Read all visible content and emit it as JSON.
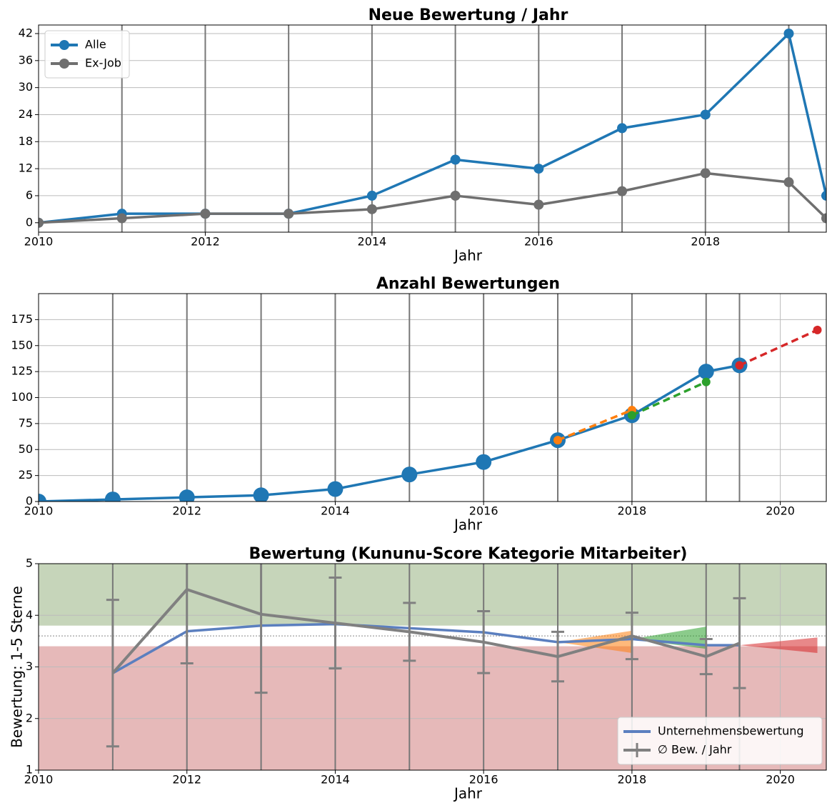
{
  "chart_data": [
    {
      "type": "line",
      "title": "Neue Bewertung / Jahr",
      "xlabel": "Jahr",
      "x": [
        2010,
        2011,
        2012,
        2013,
        2014,
        2015,
        2016,
        2017,
        2018,
        2019,
        2019.45
      ],
      "series": [
        {
          "name": "Alle",
          "color": "#1f77b4",
          "values": [
            0,
            2,
            2,
            2,
            6,
            14,
            12,
            21,
            24,
            42,
            6
          ],
          "marker_size": 7
        },
        {
          "name": "Ex-Job",
          "color": "#6f6f6f",
          "values": [
            0,
            1,
            2,
            2,
            3,
            6,
            4,
            7,
            11,
            9,
            1
          ],
          "marker_size": 7
        }
      ],
      "xlim": [
        2010,
        2019.45
      ],
      "xticks": [
        2010,
        2012,
        2014,
        2016,
        2018
      ],
      "ylim": [
        -2.1,
        43.9
      ],
      "yticks": [
        0,
        6,
        12,
        18,
        24,
        30,
        36,
        42
      ],
      "vlines": [
        2011,
        2012,
        2013,
        2014,
        2015,
        2016,
        2017,
        2018,
        2019
      ],
      "grid": true,
      "legend": "upper left"
    },
    {
      "type": "line",
      "title": "Anzahl Bewertungen",
      "xlabel": "Jahr",
      "x": [
        2010,
        2011,
        2012,
        2013,
        2014,
        2015,
        2016,
        2017,
        2018,
        2019,
        2019.45
      ],
      "series": [
        {
          "color": "#1f77b4",
          "values": [
            0,
            2,
            4,
            6,
            12,
            26,
            38,
            59,
            83,
            125,
            131
          ],
          "marker_size": 11
        },
        {
          "color": "#ff7f0e",
          "x": [
            2017,
            2018
          ],
          "values": [
            59,
            88
          ],
          "marker_size": 6,
          "dashed": true
        },
        {
          "color": "#2ca02c",
          "x": [
            2018,
            2019
          ],
          "values": [
            83,
            115
          ],
          "marker_size": 6,
          "dashed": true
        },
        {
          "color": "#d62728",
          "x": [
            2019.45,
            2020.5
          ],
          "values": [
            131,
            165
          ],
          "marker_size": 6,
          "dashed": true
        }
      ],
      "xlim": [
        2010,
        2020.62
      ],
      "xticks": [
        2010,
        2012,
        2014,
        2016,
        2018,
        2020
      ],
      "ylim": [
        0,
        200
      ],
      "yticks": [
        0,
        25,
        50,
        75,
        100,
        125,
        150,
        175
      ],
      "vlines": [
        2011,
        2012,
        2013,
        2014,
        2015,
        2016,
        2017,
        2018,
        2019,
        2019.45
      ],
      "grid": true
    },
    {
      "type": "line",
      "title": "Bewertung (Kununu-Score Kategorie Mitarbeiter)",
      "xlabel": "Jahr",
      "ylabel": "Bewertung: 1-5 Sterne",
      "x": [
        2011,
        2012,
        2013,
        2014,
        2015,
        2016,
        2017,
        2018,
        2019,
        2019.45
      ],
      "series": [
        {
          "name": "Unternehmensbewertung",
          "color": "#5b7fbf",
          "values": [
            2.88,
            3.69,
            3.8,
            3.83,
            3.75,
            3.67,
            3.48,
            3.54,
            3.42,
            3.42
          ],
          "marker_size": 0
        },
        {
          "name": "∅ Bew. / Jahr",
          "color": "#808080",
          "values": [
            2.88,
            4.5,
            4.02,
            3.85,
            3.68,
            3.48,
            3.2,
            3.6,
            3.2,
            3.46
          ],
          "errors": [
            1.42,
            1.43,
            1.52,
            0.88,
            0.56,
            0.6,
            0.48,
            0.45,
            0.34,
            0.87
          ],
          "marker_size": 0
        }
      ],
      "cones": [
        {
          "color": "#ff7f0e",
          "x": [
            2017,
            2018
          ],
          "y_start": 3.48,
          "y_low": 3.27,
          "y_high": 3.7
        },
        {
          "color": "#2ca02c",
          "x": [
            2018,
            2019
          ],
          "y_start": 3.54,
          "y_low": 3.35,
          "y_high": 3.78
        },
        {
          "color": "#d62728",
          "x": [
            2019.45,
            2020.5
          ],
          "y_start": 3.42,
          "y_low": 3.27,
          "y_high": 3.57
        }
      ],
      "bands": [
        {
          "y": [
            3.8,
            5
          ],
          "color": "#c6d5ba"
        },
        {
          "y": [
            1,
            3.4
          ],
          "color": "#e6b9b9"
        }
      ],
      "hline": 3.6,
      "xlim": [
        2010,
        2020.62
      ],
      "xticks": [
        2010,
        2012,
        2014,
        2016,
        2018,
        2020
      ],
      "ylim": [
        1,
        5
      ],
      "yticks": [
        1,
        2,
        3,
        4,
        5
      ],
      "vlines": [
        2011,
        2012,
        2013,
        2014,
        2015,
        2016,
        2017,
        2018,
        2019,
        2019.45
      ],
      "grid": true,
      "legend": "lower right"
    }
  ]
}
